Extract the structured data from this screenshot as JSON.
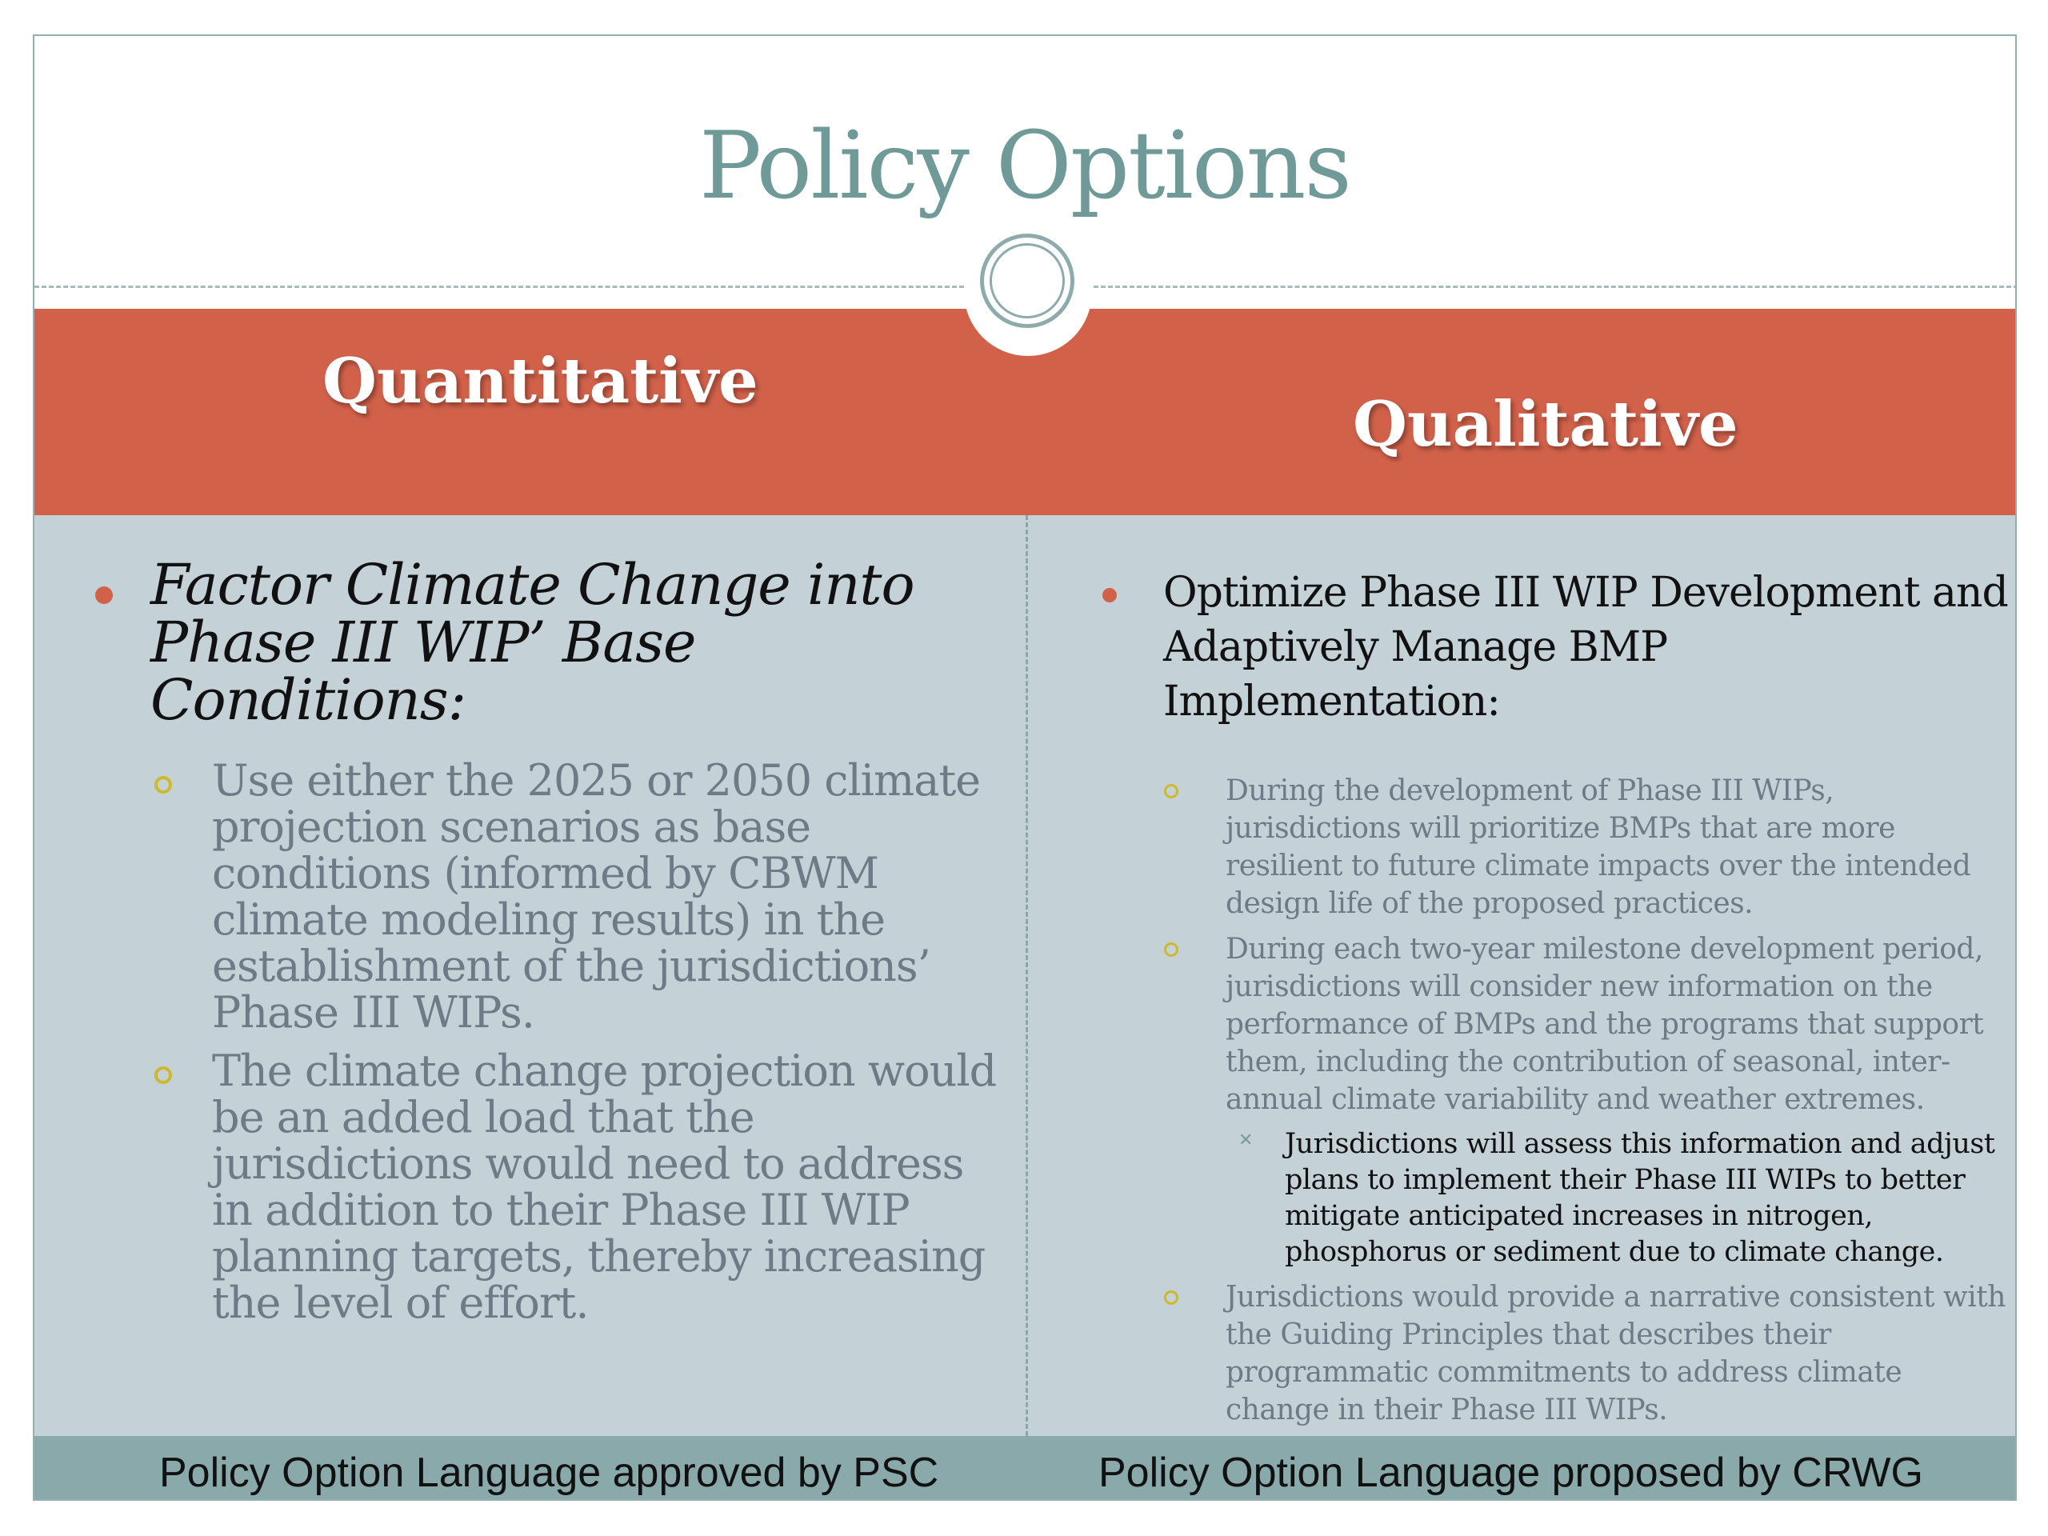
{
  "title": "Policy Options",
  "columns": {
    "left": {
      "heading": "Quantitative",
      "main_bullet": "Factor Climate Change into Phase III WIP’ Base Conditions:",
      "sub_bullets": [
        "Use either the 2025 or 2050 climate projection scenarios as base conditions (informed by CBWM climate modeling results) in the establishment of the jurisdictions’ Phase III WIPs.",
        "The climate change projection would be an added load that the jurisdictions would need to address in addition to their Phase III WIP planning targets, thereby increasing the level of effort."
      ],
      "footer": "Policy Option Language approved by PSC"
    },
    "right": {
      "heading": "Qualitative",
      "main_bullet": "Optimize Phase III WIP Development and Adaptively Manage BMP Implementation:",
      "sub_bullets": [
        "During the development of Phase III WIPs, jurisdictions will prioritize BMPs that are more resilient to future climate impacts over the intended design life of the proposed practices.",
        "During each two-year milestone development period, jurisdictions will consider new information on the performance of BMPs and the programs that support them, including the contribution of seasonal, inter-annual climate variability and weather extremes.",
        "Jurisdictions would provide a narrative consistent with the Guiding Principles that describes their programmatic commitments to address climate change in their Phase III WIPs."
      ],
      "sub_sub_bullet": "Jurisdictions will assess this information and adjust plans to implement their Phase III WIPs to better mitigate anticipated increases in nitrogen, phosphorus or sediment due to climate change.",
      "footer": "Policy Option Language proposed by CRWG"
    }
  },
  "colors": {
    "accent_red": "#d2614a",
    "title_teal": "#6f9a98",
    "content_bg": "#c4d1d6",
    "footer_bg": "#8aa9aa",
    "sub_bullet_yellow": "#cdb92b"
  }
}
